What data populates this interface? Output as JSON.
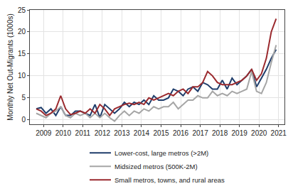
{
  "chart_data": {
    "type": "line",
    "y_label": "Monthly Net Out-Migrants (1000s)",
    "x": [
      2008.625,
      2008.875,
      2009.125,
      2009.375,
      2009.625,
      2009.875,
      2010.125,
      2010.375,
      2010.625,
      2010.875,
      2011.125,
      2011.375,
      2011.625,
      2011.875,
      2012.125,
      2012.375,
      2012.625,
      2012.875,
      2013.125,
      2013.375,
      2013.625,
      2013.875,
      2014.125,
      2014.375,
      2014.625,
      2014.875,
      2015.125,
      2015.375,
      2015.625,
      2015.875,
      2016.125,
      2016.375,
      2016.625,
      2016.875,
      2017.125,
      2017.375,
      2017.625,
      2017.875,
      2018.125,
      2018.375,
      2018.625,
      2018.875,
      2019.125,
      2019.375,
      2019.625,
      2019.875,
      2020.125,
      2020.375,
      2020.625,
      2020.875
    ],
    "series": [
      {
        "name": "Lower-cost, large metros (>2M)",
        "color": "#1f3d6b",
        "values": [
          2.5,
          2.8,
          1.5,
          2.5,
          1,
          3,
          1,
          1,
          2,
          2,
          1.5,
          1,
          3.5,
          0.5,
          3.5,
          2.5,
          1.5,
          2.5,
          4,
          3,
          4,
          3.5,
          4.5,
          3.5,
          5.5,
          4.5,
          4.5,
          5,
          7,
          6.5,
          5.5,
          7,
          7.5,
          6.5,
          8.5,
          8,
          7,
          7,
          9,
          7,
          9.5,
          8,
          9,
          10,
          11.5,
          7.5,
          9.5,
          11.5,
          14,
          16
        ]
      },
      {
        "name": "Midsized metros (500K-2M)",
        "color": "#a6a6a6",
        "values": [
          1.5,
          1,
          0.5,
          1.5,
          2,
          3,
          1,
          0.5,
          1.5,
          1,
          1.5,
          0.5,
          1.5,
          0.5,
          1.5,
          0.5,
          -0.3,
          1,
          2,
          1,
          2,
          1.5,
          2.5,
          2,
          3,
          2.5,
          3,
          3,
          4,
          2.5,
          3.5,
          4.5,
          4.5,
          5.5,
          5,
          5,
          6.5,
          5.5,
          6,
          5.5,
          6.5,
          6,
          6.5,
          7,
          11,
          6.5,
          6,
          8.5,
          13,
          17
        ]
      },
      {
        "name": "Small metros, towns, and rural areas",
        "color": "#9b2a2e",
        "values": [
          2.5,
          2,
          1,
          1.5,
          2.5,
          5.5,
          2.5,
          1.2,
          1.5,
          2,
          1.5,
          2.5,
          1.5,
          3.5,
          2.5,
          1,
          2.5,
          3,
          3.5,
          3.8,
          3.5,
          4,
          3.5,
          5,
          4.5,
          5,
          5.5,
          6,
          5.5,
          6.5,
          7,
          6,
          7.5,
          7.5,
          8.5,
          11,
          10,
          8.5,
          8,
          8,
          8,
          8.5,
          9,
          10,
          11.5,
          9,
          10.5,
          14,
          20,
          23
        ]
      }
    ],
    "xlim": [
      2008.3,
      2021.3
    ],
    "xticks": [
      2009,
      2010,
      2011,
      2012,
      2013,
      2014,
      2015,
      2016,
      2017,
      2018,
      2019,
      2020,
      2021
    ],
    "ylim": [
      -1,
      25
    ],
    "yticks": [
      0,
      5,
      10,
      15,
      20,
      25
    ],
    "grid": true,
    "legend": "bottom"
  }
}
